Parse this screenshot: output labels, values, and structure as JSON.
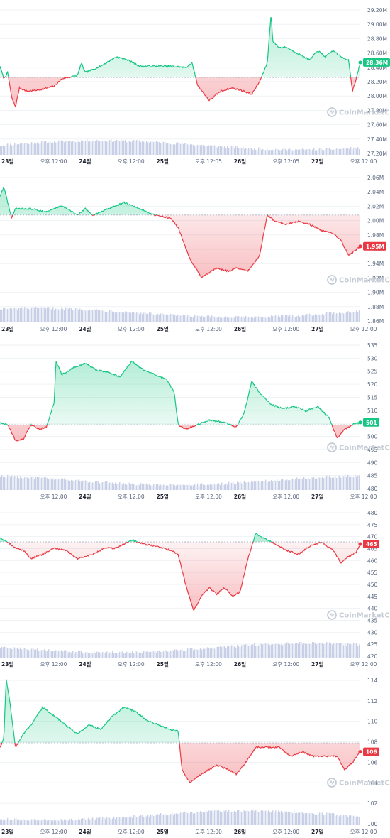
{
  "theme": {
    "up_color": "#16c784",
    "down_color": "#ea3943",
    "grid_color": "#eff2f5",
    "volume_color": "#c8cfe6",
    "axis_text_color": "#58667e"
  },
  "watermark": {
    "text": "CoinMarketCap",
    "icon": "coinmarketcap-logo-icon"
  },
  "chart_data": [
    {
      "type": "area",
      "baseline": 28.12,
      "ylim": [
        27.2,
        29.2
      ],
      "y_ticks": [
        "29.20M",
        "29.00M",
        "28.80M",
        "28.60M",
        "28.40M",
        "28.20M",
        "28.00M",
        "27.80M",
        "27.60M",
        "27.40M",
        "27.20M"
      ],
      "x_ticks": [
        {
          "label": "23일",
          "x": 0.0,
          "day": true
        },
        {
          "label": "오후 12:00",
          "x": 0.5,
          "day": false
        },
        {
          "label": "24일",
          "x": 1.0,
          "day": true
        },
        {
          "label": "오후 12:00",
          "x": 1.5,
          "day": false
        },
        {
          "label": "25일",
          "x": 2.0,
          "day": true
        },
        {
          "label": "오후 12:05",
          "x": 2.5,
          "day": false
        },
        {
          "label": "26일",
          "x": 3.0,
          "day": true
        },
        {
          "label": "오후 12:05",
          "x": 3.5,
          "day": false
        },
        {
          "label": "27일",
          "x": 4.0,
          "day": true
        },
        {
          "label": "오후 12:00",
          "x": 4.5,
          "day": false
        }
      ],
      "x_range": [
        0,
        4.65
      ],
      "current_label": "28.36M",
      "current_value": 28.36,
      "keypoints": [
        [
          0,
          28.3
        ],
        [
          0.05,
          28.1
        ],
        [
          0.1,
          28.2
        ],
        [
          0.15,
          27.8
        ],
        [
          0.2,
          27.65
        ],
        [
          0.25,
          27.95
        ],
        [
          0.35,
          27.9
        ],
        [
          0.5,
          27.92
        ],
        [
          0.7,
          27.98
        ],
        [
          0.8,
          28.1
        ],
        [
          1.0,
          28.15
        ],
        [
          1.05,
          28.35
        ],
        [
          1.1,
          28.2
        ],
        [
          1.3,
          28.3
        ],
        [
          1.5,
          28.45
        ],
        [
          1.65,
          28.4
        ],
        [
          1.8,
          28.3
        ],
        [
          2.0,
          28.3
        ],
        [
          2.2,
          28.3
        ],
        [
          2.4,
          28.28
        ],
        [
          2.48,
          28.35
        ],
        [
          2.55,
          28.0
        ],
        [
          2.7,
          27.75
        ],
        [
          2.85,
          27.9
        ],
        [
          3.0,
          27.95
        ],
        [
          3.15,
          27.9
        ],
        [
          3.25,
          27.85
        ],
        [
          3.35,
          28.05
        ],
        [
          3.45,
          28.35
        ],
        [
          3.5,
          29.15
        ],
        [
          3.52,
          28.7
        ],
        [
          3.6,
          28.6
        ],
        [
          3.7,
          28.6
        ],
        [
          3.85,
          28.5
        ],
        [
          4.0,
          28.4
        ],
        [
          4.1,
          28.55
        ],
        [
          4.2,
          28.45
        ],
        [
          4.3,
          28.55
        ],
        [
          4.4,
          28.45
        ],
        [
          4.5,
          28.4
        ],
        [
          4.55,
          27.9
        ],
        [
          4.6,
          28.1
        ],
        [
          4.65,
          28.36
        ]
      ]
    },
    {
      "type": "area",
      "baseline": 2.0,
      "ylim": [
        1.86,
        2.06
      ],
      "y_ticks": [
        "2.06M",
        "2.04M",
        "2.02M",
        "2.00M",
        "1.98M",
        "1.96M",
        "1.94M",
        "1.92M",
        "1.90M",
        "1.88M",
        "1.86M"
      ],
      "x_ticks": [
        {
          "label": "23일",
          "x": 0.0,
          "day": true
        },
        {
          "label": "오후 12:00",
          "x": 0.5,
          "day": false
        },
        {
          "label": "24일",
          "x": 1.0,
          "day": true
        },
        {
          "label": "오후 12:00",
          "x": 1.5,
          "day": false
        },
        {
          "label": "25일",
          "x": 2.0,
          "day": true
        },
        {
          "label": "오후 12:00",
          "x": 2.5,
          "day": false
        },
        {
          "label": "26일",
          "x": 3.0,
          "day": true
        },
        {
          "label": "오후 12:00",
          "x": 3.5,
          "day": false
        },
        {
          "label": "27일",
          "x": 4.0,
          "day": true
        },
        {
          "label": "오후 12:00",
          "x": 4.5,
          "day": false
        }
      ],
      "x_range": [
        0,
        4.65
      ],
      "current_label": "1.95M",
      "current_value": 1.95,
      "keypoints": [
        [
          0,
          2.03
        ],
        [
          0.05,
          2.045
        ],
        [
          0.1,
          2.02
        ],
        [
          0.15,
          1.995
        ],
        [
          0.2,
          2.01
        ],
        [
          0.4,
          2.01
        ],
        [
          0.6,
          2.005
        ],
        [
          0.8,
          2.015
        ],
        [
          1.0,
          2.0
        ],
        [
          1.1,
          2.01
        ],
        [
          1.2,
          2.0
        ],
        [
          1.4,
          2.01
        ],
        [
          1.6,
          2.02
        ],
        [
          1.8,
          2.01
        ],
        [
          2.0,
          2.0
        ],
        [
          2.2,
          1.995
        ],
        [
          2.3,
          1.98
        ],
        [
          2.45,
          1.93
        ],
        [
          2.6,
          1.9
        ],
        [
          2.8,
          1.915
        ],
        [
          2.95,
          1.91
        ],
        [
          3.05,
          1.915
        ],
        [
          3.2,
          1.91
        ],
        [
          3.35,
          1.935
        ],
        [
          3.45,
          2.0
        ],
        [
          3.55,
          1.99
        ],
        [
          3.7,
          1.985
        ],
        [
          3.85,
          1.99
        ],
        [
          4.0,
          1.985
        ],
        [
          4.15,
          1.975
        ],
        [
          4.3,
          1.97
        ],
        [
          4.4,
          1.96
        ],
        [
          4.5,
          1.935
        ],
        [
          4.55,
          1.94
        ],
        [
          4.6,
          1.945
        ],
        [
          4.65,
          1.95
        ]
      ]
    },
    {
      "type": "area",
      "baseline": 500,
      "ylim": [
        480,
        535
      ],
      "y_ticks": [
        "535",
        "530",
        "525",
        "520",
        "515",
        "510",
        "505",
        "500",
        "495",
        "490",
        "485",
        "480"
      ],
      "x_ticks": [
        {
          "label": "오후 12:00",
          "x": 0.5,
          "day": false
        },
        {
          "label": "24일",
          "x": 1.0,
          "day": true
        },
        {
          "label": "오후 12:00",
          "x": 1.5,
          "day": false
        },
        {
          "label": "25일",
          "x": 2.0,
          "day": true
        },
        {
          "label": "오후 12:00",
          "x": 2.5,
          "day": false
        },
        {
          "label": "26일",
          "x": 3.0,
          "day": true
        },
        {
          "label": "오후 12:00",
          "x": 3.5,
          "day": false
        },
        {
          "label": "27일",
          "x": 4.0,
          "day": true
        },
        {
          "label": "오후 12:00",
          "x": 4.5,
          "day": false
        }
      ],
      "x_range": [
        0,
        4.65
      ],
      "current_label": "501",
      "current_value": 501,
      "keypoints": [
        [
          0,
          501
        ],
        [
          0.1,
          500
        ],
        [
          0.2,
          493
        ],
        [
          0.3,
          493.5
        ],
        [
          0.4,
          500
        ],
        [
          0.5,
          498
        ],
        [
          0.6,
          499
        ],
        [
          0.7,
          510
        ],
        [
          0.72,
          528
        ],
        [
          0.8,
          522
        ],
        [
          0.95,
          525
        ],
        [
          1.1,
          527
        ],
        [
          1.25,
          524
        ],
        [
          1.4,
          523
        ],
        [
          1.55,
          521
        ],
        [
          1.7,
          528
        ],
        [
          1.85,
          524
        ],
        [
          2.0,
          522
        ],
        [
          2.15,
          520
        ],
        [
          2.25,
          514
        ],
        [
          2.3,
          500
        ],
        [
          2.4,
          498
        ],
        [
          2.55,
          500
        ],
        [
          2.7,
          502
        ],
        [
          2.9,
          501
        ],
        [
          3.05,
          499
        ],
        [
          3.15,
          505
        ],
        [
          3.25,
          519
        ],
        [
          3.35,
          514
        ],
        [
          3.5,
          509
        ],
        [
          3.65,
          507
        ],
        [
          3.8,
          508
        ],
        [
          3.95,
          506
        ],
        [
          4.1,
          508
        ],
        [
          4.25,
          503
        ],
        [
          4.35,
          494
        ],
        [
          4.45,
          498
        ],
        [
          4.55,
          500
        ],
        [
          4.65,
          501
        ]
      ]
    },
    {
      "type": "area",
      "baseline": 466,
      "ylim": [
        420,
        480
      ],
      "y_ticks": [
        "480",
        "475",
        "470",
        "465",
        "460",
        "455",
        "450",
        "445",
        "440",
        "435",
        "430",
        "425",
        "420"
      ],
      "x_ticks": [
        {
          "label": "23일",
          "x": 0.0,
          "day": true
        },
        {
          "label": "오후 12:00",
          "x": 0.5,
          "day": false
        },
        {
          "label": "24일",
          "x": 1.0,
          "day": true
        },
        {
          "label": "오후 12:00",
          "x": 1.5,
          "day": false
        },
        {
          "label": "25일",
          "x": 2.0,
          "day": true
        },
        {
          "label": "오후 12:00",
          "x": 2.5,
          "day": false
        },
        {
          "label": "26일",
          "x": 3.0,
          "day": true
        },
        {
          "label": "오후 12:00",
          "x": 3.5,
          "day": false
        },
        {
          "label": "27일",
          "x": 4.0,
          "day": true
        },
        {
          "label": "오후 12:00",
          "x": 4.5,
          "day": false
        }
      ],
      "x_range": [
        0,
        4.65
      ],
      "current_label": "465",
      "current_value": 465,
      "keypoints": [
        [
          0,
          468
        ],
        [
          0.1,
          466
        ],
        [
          0.2,
          463
        ],
        [
          0.3,
          462
        ],
        [
          0.4,
          458
        ],
        [
          0.55,
          460
        ],
        [
          0.7,
          463
        ],
        [
          0.85,
          462
        ],
        [
          1.0,
          458
        ],
        [
          1.2,
          460
        ],
        [
          1.35,
          463
        ],
        [
          1.5,
          463
        ],
        [
          1.7,
          467
        ],
        [
          1.85,
          465
        ],
        [
          2.0,
          464
        ],
        [
          2.2,
          462
        ],
        [
          2.3,
          460
        ],
        [
          2.4,
          445
        ],
        [
          2.5,
          433
        ],
        [
          2.6,
          440
        ],
        [
          2.7,
          444
        ],
        [
          2.8,
          441
        ],
        [
          2.9,
          444
        ],
        [
          3.0,
          440
        ],
        [
          3.1,
          442
        ],
        [
          3.2,
          458
        ],
        [
          3.3,
          470
        ],
        [
          3.4,
          468
        ],
        [
          3.55,
          465
        ],
        [
          3.7,
          462
        ],
        [
          3.85,
          460
        ],
        [
          4.0,
          464
        ],
        [
          4.15,
          466
        ],
        [
          4.3,
          462
        ],
        [
          4.4,
          456
        ],
        [
          4.5,
          459
        ],
        [
          4.6,
          461
        ],
        [
          4.65,
          465
        ]
      ]
    },
    {
      "type": "area",
      "baseline": 107,
      "ylim": [
        100,
        114
      ],
      "y_ticks": [
        "114",
        "112",
        "110",
        "108",
        "106",
        "104",
        "102",
        "100"
      ],
      "x_ticks": [
        {
          "label": "23일",
          "x": 0.0,
          "day": true
        },
        {
          "label": "오후 12:00",
          "x": 0.5,
          "day": false
        },
        {
          "label": "24일",
          "x": 1.0,
          "day": true
        },
        {
          "label": "오후 12:00",
          "x": 1.5,
          "day": false
        },
        {
          "label": "25일",
          "x": 2.0,
          "day": true
        },
        {
          "label": "오후 12:00",
          "x": 2.5,
          "day": false
        },
        {
          "label": "26일",
          "x": 3.0,
          "day": true
        },
        {
          "label": "오후 12:00",
          "x": 3.5,
          "day": false
        },
        {
          "label": "27일",
          "x": 4.0,
          "day": true
        },
        {
          "label": "오후 12:00",
          "x": 4.5,
          "day": false
        }
      ],
      "x_range": [
        0,
        4.65
      ],
      "current_label": "106",
      "current_value": 106,
      "keypoints": [
        [
          0,
          106.5
        ],
        [
          0.05,
          107.5
        ],
        [
          0.08,
          114.2
        ],
        [
          0.12,
          112
        ],
        [
          0.2,
          106.5
        ],
        [
          0.3,
          108
        ],
        [
          0.4,
          109
        ],
        [
          0.55,
          111
        ],
        [
          0.7,
          110
        ],
        [
          0.85,
          109
        ],
        [
          1.0,
          108
        ],
        [
          1.15,
          109
        ],
        [
          1.3,
          108.5
        ],
        [
          1.45,
          110
        ],
        [
          1.6,
          111
        ],
        [
          1.75,
          110.5
        ],
        [
          1.9,
          109.5
        ],
        [
          2.05,
          109
        ],
        [
          2.2,
          108.5
        ],
        [
          2.3,
          108.3
        ],
        [
          2.35,
          104
        ],
        [
          2.45,
          102.5
        ],
        [
          2.6,
          103.5
        ],
        [
          2.8,
          104.5
        ],
        [
          2.95,
          104
        ],
        [
          3.05,
          103.5
        ],
        [
          3.15,
          104.5
        ],
        [
          3.3,
          106.5
        ],
        [
          3.45,
          106.5
        ],
        [
          3.6,
          106.5
        ],
        [
          3.75,
          105.5
        ],
        [
          3.9,
          106
        ],
        [
          4.05,
          105.5
        ],
        [
          4.2,
          105.5
        ],
        [
          4.35,
          105.5
        ],
        [
          4.45,
          104
        ],
        [
          4.55,
          104.8
        ],
        [
          4.65,
          106
        ]
      ]
    }
  ]
}
